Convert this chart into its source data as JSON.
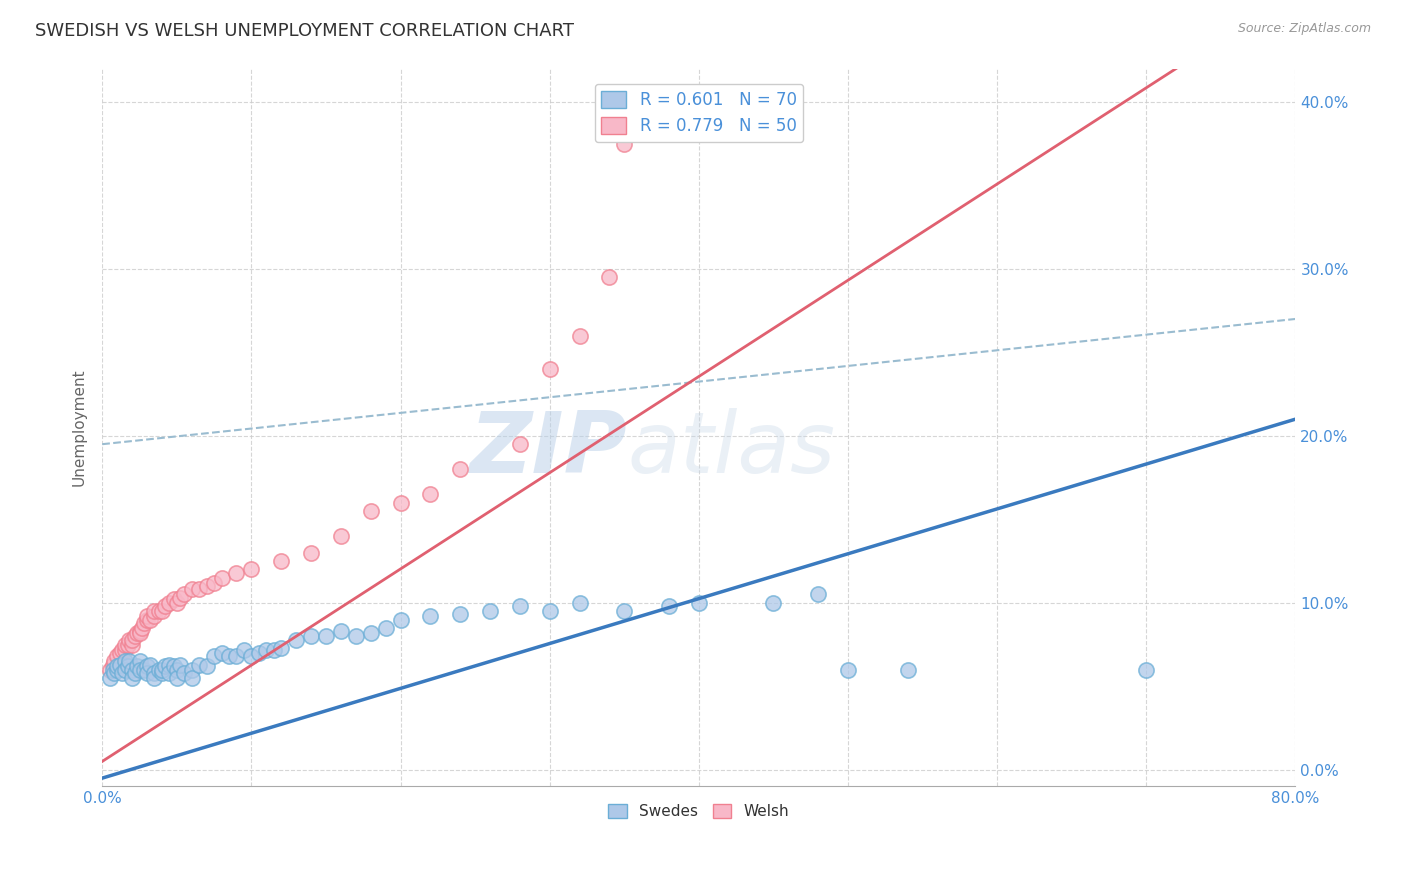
{
  "title": "SWEDISH VS WELSH UNEMPLOYMENT CORRELATION CHART",
  "source": "Source: ZipAtlas.com",
  "ylabel": "Unemployment",
  "ytick_labels": [
    "0.0%",
    "10.0%",
    "20.0%",
    "30.0%",
    "40.0%"
  ],
  "ytick_values": [
    0.0,
    0.1,
    0.2,
    0.3,
    0.4
  ],
  "xlim": [
    0.0,
    0.8
  ],
  "ylim": [
    -0.01,
    0.42
  ],
  "swedes_color": "#6baed6",
  "swedes_color_fill": "#aec8e8",
  "welsh_color": "#f08090",
  "welsh_color_fill": "#f8b8c8",
  "line_blue_color": "#3a7abf",
  "line_pink_color": "#e06070",
  "dashed_line_color": "#9abcd0",
  "R_swedes": 0.601,
  "N_swedes": 70,
  "R_welsh": 0.779,
  "N_welsh": 50,
  "watermark_zip": "ZIP",
  "watermark_atlas": "atlas",
  "title_fontsize": 13,
  "tick_label_color": "#4a90d9",
  "swedes_scatter": [
    [
      0.005,
      0.055
    ],
    [
      0.007,
      0.06
    ],
    [
      0.008,
      0.058
    ],
    [
      0.01,
      0.06
    ],
    [
      0.01,
      0.062
    ],
    [
      0.012,
      0.063
    ],
    [
      0.013,
      0.058
    ],
    [
      0.015,
      0.065
    ],
    [
      0.015,
      0.06
    ],
    [
      0.017,
      0.062
    ],
    [
      0.018,
      0.065
    ],
    [
      0.02,
      0.06
    ],
    [
      0.02,
      0.055
    ],
    [
      0.022,
      0.058
    ],
    [
      0.023,
      0.062
    ],
    [
      0.025,
      0.065
    ],
    [
      0.025,
      0.06
    ],
    [
      0.028,
      0.06
    ],
    [
      0.03,
      0.062
    ],
    [
      0.03,
      0.058
    ],
    [
      0.032,
      0.063
    ],
    [
      0.035,
      0.058
    ],
    [
      0.035,
      0.055
    ],
    [
      0.038,
      0.06
    ],
    [
      0.04,
      0.058
    ],
    [
      0.04,
      0.06
    ],
    [
      0.042,
      0.062
    ],
    [
      0.045,
      0.063
    ],
    [
      0.045,
      0.058
    ],
    [
      0.048,
      0.062
    ],
    [
      0.05,
      0.06
    ],
    [
      0.05,
      0.055
    ],
    [
      0.052,
      0.063
    ],
    [
      0.055,
      0.058
    ],
    [
      0.06,
      0.06
    ],
    [
      0.06,
      0.055
    ],
    [
      0.065,
      0.063
    ],
    [
      0.07,
      0.062
    ],
    [
      0.075,
      0.068
    ],
    [
      0.08,
      0.07
    ],
    [
      0.085,
      0.068
    ],
    [
      0.09,
      0.068
    ],
    [
      0.095,
      0.072
    ],
    [
      0.1,
      0.068
    ],
    [
      0.105,
      0.07
    ],
    [
      0.11,
      0.072
    ],
    [
      0.115,
      0.072
    ],
    [
      0.12,
      0.073
    ],
    [
      0.13,
      0.078
    ],
    [
      0.14,
      0.08
    ],
    [
      0.15,
      0.08
    ],
    [
      0.16,
      0.083
    ],
    [
      0.17,
      0.08
    ],
    [
      0.18,
      0.082
    ],
    [
      0.19,
      0.085
    ],
    [
      0.2,
      0.09
    ],
    [
      0.22,
      0.092
    ],
    [
      0.24,
      0.093
    ],
    [
      0.26,
      0.095
    ],
    [
      0.28,
      0.098
    ],
    [
      0.3,
      0.095
    ],
    [
      0.32,
      0.1
    ],
    [
      0.35,
      0.095
    ],
    [
      0.38,
      0.098
    ],
    [
      0.4,
      0.1
    ],
    [
      0.45,
      0.1
    ],
    [
      0.48,
      0.105
    ],
    [
      0.5,
      0.06
    ],
    [
      0.54,
      0.06
    ],
    [
      0.7,
      0.06
    ]
  ],
  "welsh_scatter": [
    [
      0.005,
      0.06
    ],
    [
      0.007,
      0.063
    ],
    [
      0.008,
      0.065
    ],
    [
      0.01,
      0.068
    ],
    [
      0.012,
      0.07
    ],
    [
      0.013,
      0.072
    ],
    [
      0.015,
      0.072
    ],
    [
      0.015,
      0.075
    ],
    [
      0.017,
      0.075
    ],
    [
      0.018,
      0.078
    ],
    [
      0.02,
      0.075
    ],
    [
      0.02,
      0.078
    ],
    [
      0.022,
      0.08
    ],
    [
      0.023,
      0.082
    ],
    [
      0.025,
      0.083
    ],
    [
      0.025,
      0.082
    ],
    [
      0.027,
      0.085
    ],
    [
      0.028,
      0.088
    ],
    [
      0.03,
      0.09
    ],
    [
      0.03,
      0.092
    ],
    [
      0.032,
      0.09
    ],
    [
      0.035,
      0.092
    ],
    [
      0.035,
      0.095
    ],
    [
      0.038,
      0.095
    ],
    [
      0.04,
      0.095
    ],
    [
      0.042,
      0.098
    ],
    [
      0.045,
      0.1
    ],
    [
      0.048,
      0.102
    ],
    [
      0.05,
      0.1
    ],
    [
      0.052,
      0.103
    ],
    [
      0.055,
      0.105
    ],
    [
      0.06,
      0.108
    ],
    [
      0.065,
      0.108
    ],
    [
      0.07,
      0.11
    ],
    [
      0.075,
      0.112
    ],
    [
      0.08,
      0.115
    ],
    [
      0.09,
      0.118
    ],
    [
      0.1,
      0.12
    ],
    [
      0.12,
      0.125
    ],
    [
      0.14,
      0.13
    ],
    [
      0.16,
      0.14
    ],
    [
      0.18,
      0.155
    ],
    [
      0.2,
      0.16
    ],
    [
      0.22,
      0.165
    ],
    [
      0.24,
      0.18
    ],
    [
      0.28,
      0.195
    ],
    [
      0.3,
      0.24
    ],
    [
      0.32,
      0.26
    ],
    [
      0.34,
      0.295
    ],
    [
      0.35,
      0.375
    ]
  ],
  "blue_line": {
    "x0": 0.0,
    "y0": -0.005,
    "x1": 0.8,
    "y1": 0.21
  },
  "pink_line": {
    "x0": 0.0,
    "y0": 0.005,
    "x1": 0.72,
    "y1": 0.42
  },
  "dash_line": {
    "x0": 0.0,
    "y0": 0.195,
    "x1": 0.8,
    "y1": 0.27
  }
}
